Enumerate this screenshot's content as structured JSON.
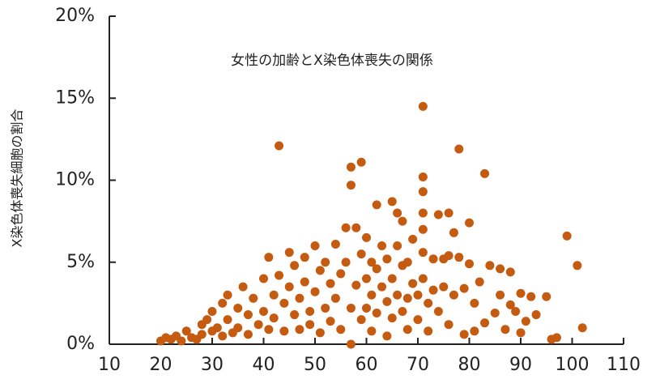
{
  "chart_data": {
    "type": "scatter",
    "title": "女性の加齢とX染色体喪失の関係",
    "y_label": "X染色体喪失細胞の割合",
    "color": "#c55a11",
    "xlim": [
      10,
      110
    ],
    "xticks": [
      10,
      20,
      30,
      40,
      50,
      60,
      70,
      80,
      90,
      100,
      110
    ],
    "ylim": [
      0,
      20
    ],
    "yticks": [
      {
        "value": 0,
        "label": "0%"
      },
      {
        "value": 5,
        "label": "5%"
      },
      {
        "value": 10,
        "label": "10%"
      },
      {
        "value": 15,
        "label": "15%"
      },
      {
        "value": 20,
        "label": "20%"
      }
    ],
    "x": [
      20,
      21,
      22,
      23,
      24,
      25,
      26,
      27,
      28,
      28,
      29,
      30,
      30,
      31,
      32,
      32,
      33,
      33,
      34,
      35,
      35,
      36,
      37,
      37,
      38,
      39,
      40,
      40,
      41,
      41,
      42,
      42,
      43,
      43,
      44,
      44,
      45,
      45,
      46,
      46,
      47,
      47,
      48,
      48,
      49,
      49,
      50,
      50,
      51,
      51,
      52,
      52,
      53,
      53,
      54,
      54,
      55,
      55,
      56,
      56,
      57,
      57,
      57,
      57,
      58,
      58,
      59,
      59,
      59,
      60,
      60,
      60,
      61,
      61,
      61,
      62,
      62,
      62,
      63,
      63,
      64,
      64,
      64,
      65,
      65,
      65,
      66,
      66,
      66,
      67,
      67,
      67,
      68,
      68,
      68,
      69,
      69,
      70,
      70,
      71,
      71,
      71,
      71,
      71,
      71,
      71,
      72,
      72,
      73,
      73,
      74,
      74,
      75,
      75,
      76,
      76,
      76,
      77,
      77,
      78,
      78,
      79,
      79,
      80,
      80,
      81,
      81,
      82,
      83,
      83,
      84,
      85,
      86,
      86,
      87,
      88,
      88,
      89,
      90,
      90,
      91,
      92,
      93,
      95,
      96,
      97,
      99,
      101,
      102
    ],
    "values": [
      0.2,
      0.4,
      0.3,
      0.5,
      0.2,
      0.8,
      0.4,
      0.3,
      1.2,
      0.6,
      1.5,
      0.8,
      2.0,
      1.0,
      0.5,
      2.5,
      3.0,
      1.5,
      0.7,
      2.2,
      1.0,
      3.5,
      1.8,
      0.6,
      2.8,
      1.2,
      4.0,
      2.0,
      5.3,
      0.9,
      3.0,
      1.6,
      4.2,
      12.1,
      2.5,
      0.8,
      5.6,
      3.5,
      1.8,
      4.8,
      2.8,
      0.9,
      5.3,
      3.8,
      2.0,
      1.2,
      6.0,
      3.2,
      4.5,
      0.7,
      2.2,
      5.0,
      3.7,
      1.4,
      6.1,
      2.8,
      4.3,
      0.9,
      5.0,
      7.1,
      10.8,
      9.7,
      2.2,
      0,
      7.1,
      3.6,
      11.1,
      5.5,
      1.5,
      6.5,
      4.0,
      2.2,
      5.0,
      3.0,
      0.8,
      8.5,
      4.6,
      1.9,
      6.0,
      3.5,
      5.2,
      2.6,
      0.5,
      8.7,
      4.0,
      1.6,
      8.0,
      6.0,
      3.0,
      7.5,
      4.8,
      2.0,
      5.0,
      2.8,
      0.9,
      6.4,
      3.7,
      3.0,
      1.5,
      14.5,
      10.2,
      9.3,
      8.0,
      7.0,
      5.6,
      4.0,
      2.5,
      0.8,
      5.2,
      3.3,
      7.9,
      2.0,
      5.2,
      3.5,
      8.0,
      5.4,
      1.2,
      6.8,
      3.0,
      11.9,
      5.3,
      3.4,
      0.6,
      7.4,
      4.9,
      2.5,
      0.8,
      3.8,
      10.4,
      1.3,
      4.8,
      1.9,
      4.6,
      3.0,
      0.9,
      4.4,
      2.4,
      2.0,
      3.1,
      0.7,
      1.4,
      2.9,
      1.8,
      2.9,
      0.3,
      0.4,
      6.6,
      4.8,
      1.0
    ]
  }
}
